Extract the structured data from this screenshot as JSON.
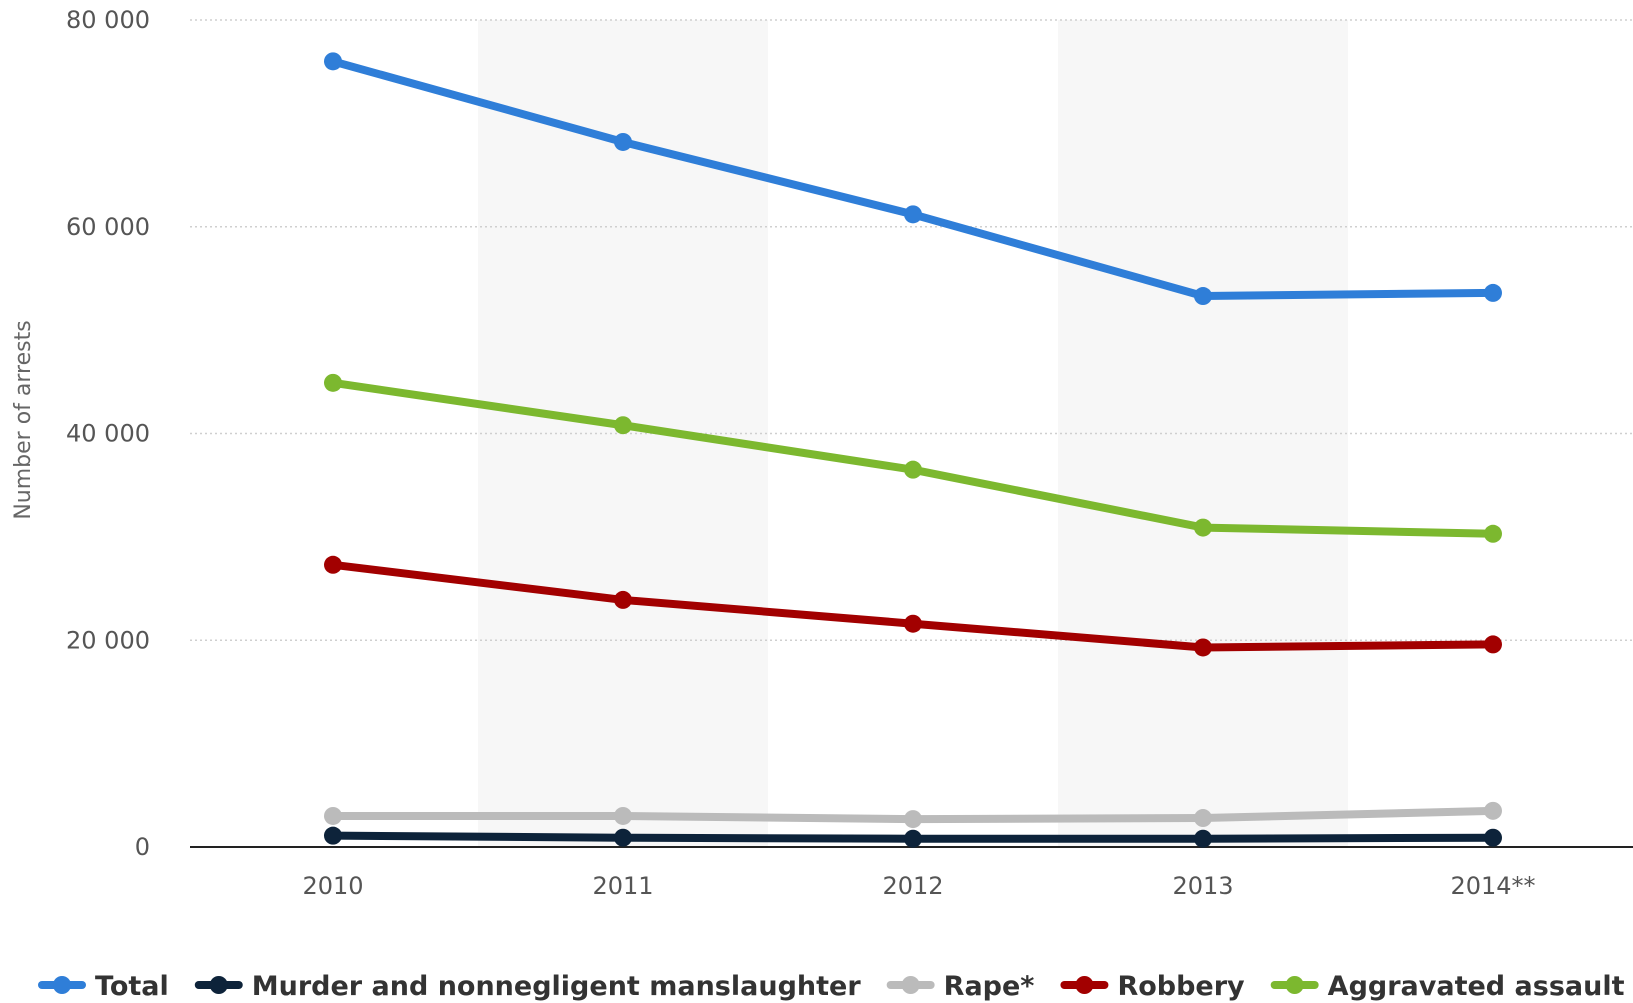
{
  "chart_data": {
    "type": "line",
    "categories": [
      "2010",
      "2011",
      "2012",
      "2013",
      "2014**"
    ],
    "ylabel": "Number of arrests",
    "xlabel": "",
    "ylim": [
      0,
      80000
    ],
    "yticks": [
      0,
      20000,
      40000,
      60000,
      80000
    ],
    "ytick_labels": [
      "0",
      "20 000",
      "40 000",
      "60 000",
      "80 000"
    ],
    "grid": true,
    "legend_position": "bottom",
    "series": [
      {
        "name": "Total",
        "color": "#2f7ed8",
        "values": [
          76000,
          68200,
          61200,
          53300,
          53600
        ]
      },
      {
        "name": "Murder and nonnegligent manslaughter",
        "color": "#0d233a",
        "values": [
          1100,
          900,
          800,
          800,
          900
        ]
      },
      {
        "name": "Rape*",
        "color": "#bbbbbb",
        "values": [
          3000,
          3000,
          2700,
          2800,
          3500
        ]
      },
      {
        "name": "Robbery",
        "color": "#a20000",
        "values": [
          27300,
          23900,
          21600,
          19300,
          19600
        ]
      },
      {
        "name": "Aggravated assault",
        "color": "#7cb82f",
        "values": [
          44900,
          40800,
          36500,
          30900,
          30300
        ]
      }
    ]
  }
}
